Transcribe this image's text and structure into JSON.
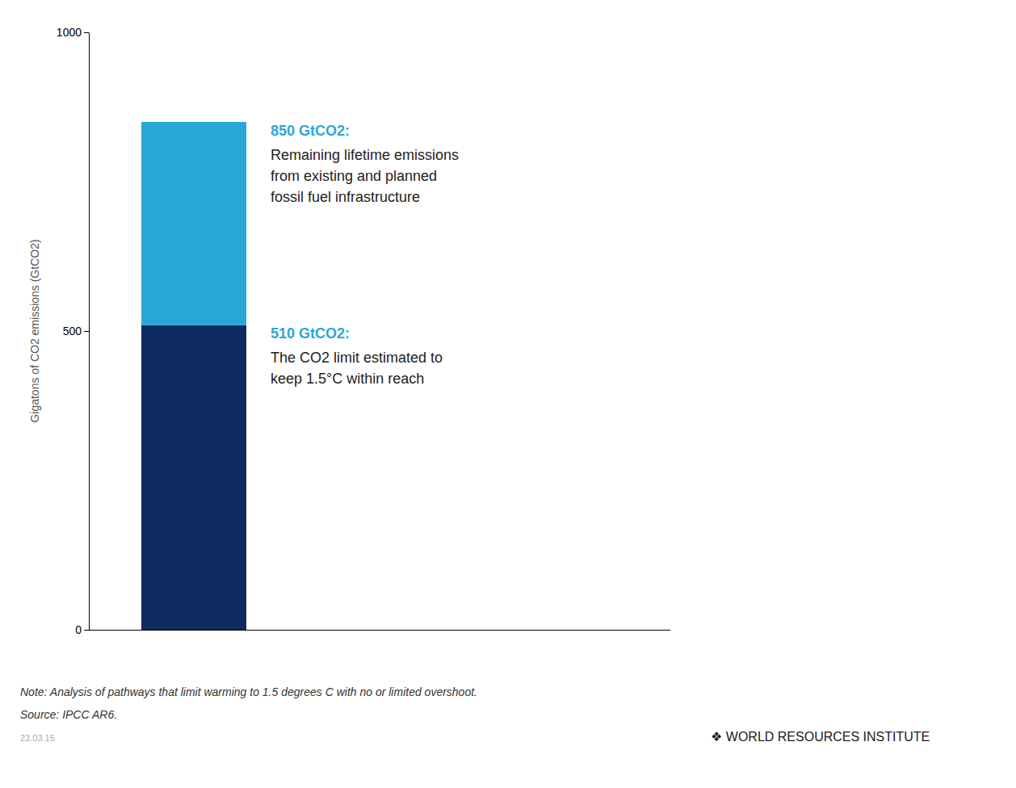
{
  "chart_data": {
    "type": "bar",
    "stacked": true,
    "categories": [
      null
    ],
    "series": [
      {
        "color": "#0d2b5e",
        "values": [
          510
        ]
      },
      {
        "color": "#29a8d8",
        "values": [
          340
        ]
      }
    ],
    "ylim": [
      0,
      1000
    ],
    "yticks": [
      0,
      500,
      1000
    ],
    "ylabel": "Gigatons of CO2 emissions (GtCO2)",
    "annotations": [
      {
        "title": "850 GtCO2:",
        "color": "#29a8d8",
        "lines": [
          "Remaining lifetime emissions",
          "from existing and planned",
          "fossil fuel infrastructure"
        ]
      },
      {
        "title": "510 GtCO2:",
        "color": "#29a8d8",
        "lines": [
          "The CO2 limit estimated to",
          "keep 1.5°C within reach"
        ]
      }
    ],
    "note": "Note: Analysis of pathways that limit warming to 1.5 degrees C with no or limited overshoot.",
    "source": "Source: IPCC AR6.",
    "date": "23.03.15",
    "credit": "❖  WORLD RESOURCES INSTITUTE"
  }
}
